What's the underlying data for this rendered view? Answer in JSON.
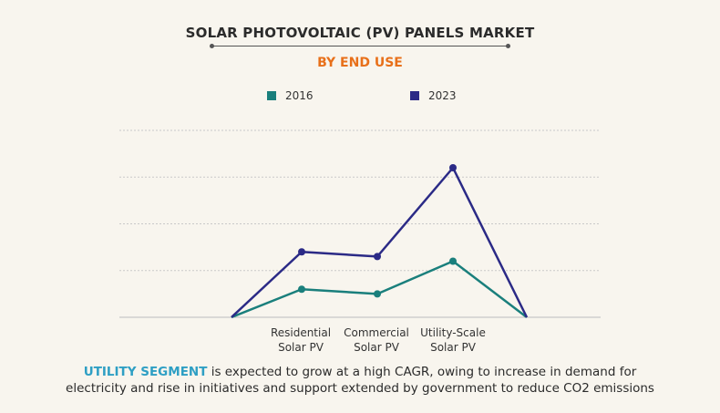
{
  "chart_data": {
    "type": "line",
    "title": "SOLAR PHOTOVOLTAIC (PV) PANELS MARKET",
    "subtitle": "BY END USE",
    "categories": [
      "",
      "Residential Solar PV",
      "Commercial Solar PV",
      "Utility-Scale Solar PV",
      ""
    ],
    "category_labels": [
      [
        "Residential",
        "Solar PV"
      ],
      [
        "Commercial",
        "Solar PV"
      ],
      [
        "Utility-Scale",
        "Solar PV"
      ]
    ],
    "series": [
      {
        "name": "2016",
        "color": "#1a7f7c",
        "values": [
          0,
          0.6,
          0.5,
          1.2,
          0
        ]
      },
      {
        "name": "2023",
        "color": "#2b2a86",
        "values": [
          0,
          1.4,
          1.3,
          3.2,
          0
        ]
      }
    ],
    "ylim": [
      0,
      4
    ],
    "grid": true,
    "legend_position": "top"
  },
  "caption": {
    "highlight": "UTILITY SEGMENT",
    "line1_rest": " is expected to grow at a high CAGR, owing to increase in demand for",
    "line2": "electricity and rise in initiatives and support extended by government to reduce CO2 emissions"
  }
}
